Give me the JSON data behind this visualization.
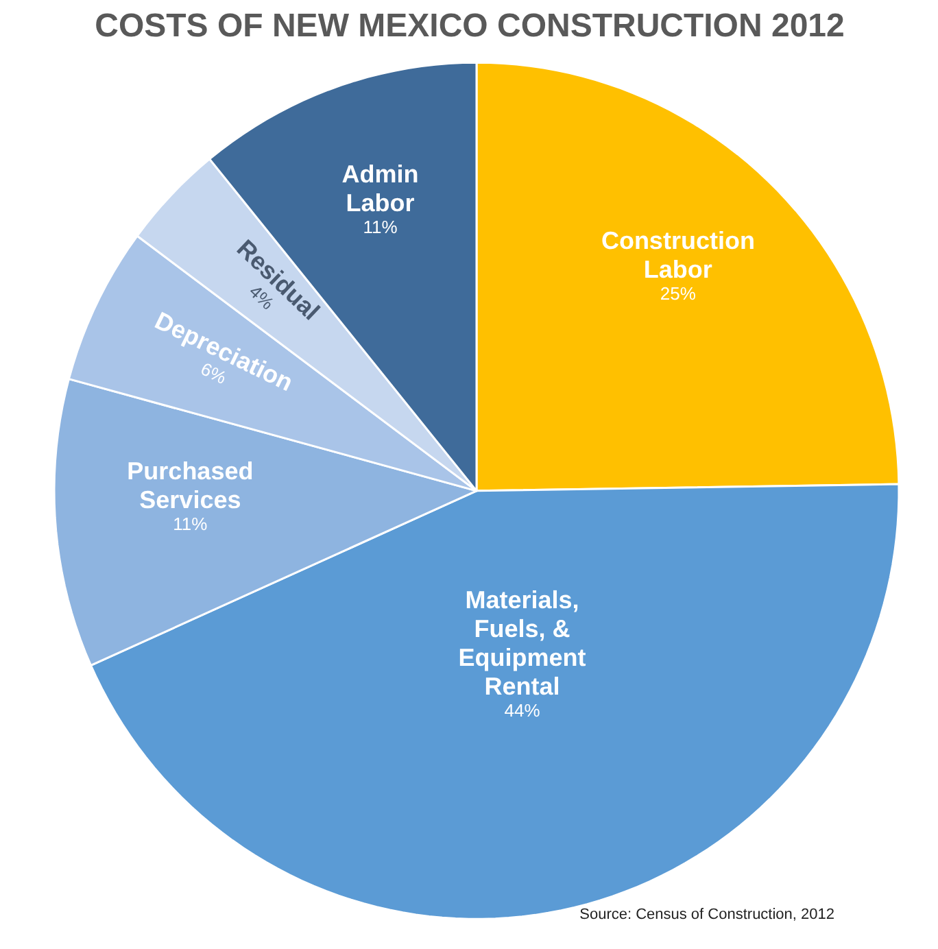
{
  "chart_data": {
    "type": "pie",
    "title": "COSTS OF NEW MEXICO CONSTRUCTION 2012",
    "categories": [
      "Construction\nLabor",
      "Materials,\nFuels, &\nEquipment\nRental",
      "Purchased\nServices",
      "Depreciation",
      "Residual",
      "Admin\nLabor"
    ],
    "values": [
      25,
      44,
      11,
      6,
      4,
      11
    ],
    "value_labels": [
      "25%",
      "44%",
      "11%",
      "6%",
      "4%",
      "11%"
    ],
    "colors": [
      "#ffc000",
      "#5b9bd5",
      "#8eb4e0",
      "#a9c4e8",
      "#c6d7ef",
      "#3f6b9a"
    ],
    "annotations": [
      "Source: Census of Construction, 2012"
    ]
  }
}
